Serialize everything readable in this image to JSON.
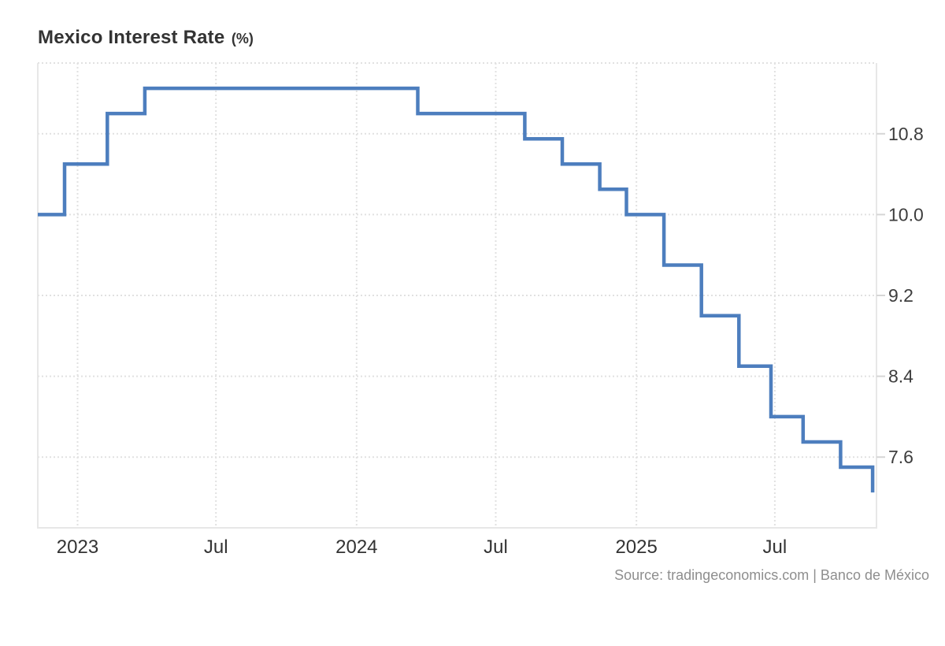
{
  "header": {
    "title": "Mexico Interest Rate",
    "unit_suffix": "(%)"
  },
  "footer": {
    "source_credit": "Source: tradingeconomics.com | Banco de México"
  },
  "colors": {
    "background": "#ffffff",
    "line": "#4d7ebe",
    "gridline": "#e1e1e1",
    "plot_border": "#e7e7e7",
    "tick_mark": "#d6d6d6",
    "y_tick_label": "#3d3d3d",
    "x_tick_label": "#333333",
    "title": "#333333",
    "source": "#8e8e8e"
  },
  "chart_data": {
    "type": "line",
    "step": true,
    "title": "Mexico Interest Rate (%)",
    "xlabel": "",
    "ylabel": "",
    "legend": "none",
    "grid": "dotted",
    "xlim": [
      "2022-11-10",
      "2025-11-11"
    ],
    "ylim": [
      6.9,
      11.5
    ],
    "yticks": [
      {
        "value": 10.8,
        "label": "10.8"
      },
      {
        "value": 10.0,
        "label": "10.0"
      },
      {
        "value": 9.2,
        "label": "9.2"
      },
      {
        "value": 8.4,
        "label": "8.4"
      },
      {
        "value": 7.6,
        "label": "7.6"
      }
    ],
    "xticks": [
      {
        "date": "2023-01-01",
        "label": "2023"
      },
      {
        "date": "2023-07-01",
        "label": "Jul"
      },
      {
        "date": "2024-01-01",
        "label": "2024"
      },
      {
        "date": "2024-07-01",
        "label": "Jul"
      },
      {
        "date": "2025-01-01",
        "label": "2025"
      },
      {
        "date": "2025-07-01",
        "label": "Jul"
      }
    ],
    "series": [
      {
        "name": "Mexico Interest Rate",
        "unit": "%",
        "points": [
          [
            "2022-11-10",
            10.0
          ],
          [
            "2022-12-15",
            10.5
          ],
          [
            "2023-02-09",
            11.0
          ],
          [
            "2023-03-30",
            11.25
          ],
          [
            "2024-03-21",
            11.0
          ],
          [
            "2024-08-08",
            10.75
          ],
          [
            "2024-09-26",
            10.5
          ],
          [
            "2024-11-14",
            10.25
          ],
          [
            "2024-12-19",
            10.0
          ],
          [
            "2025-02-06",
            9.5
          ],
          [
            "2025-03-27",
            9.0
          ],
          [
            "2025-05-15",
            8.5
          ],
          [
            "2025-06-26",
            8.0
          ],
          [
            "2025-08-07",
            7.75
          ],
          [
            "2025-09-25",
            7.5
          ],
          [
            "2025-11-06",
            7.25
          ]
        ]
      }
    ]
  }
}
